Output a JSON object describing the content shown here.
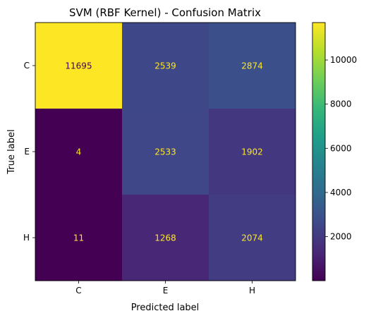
{
  "chart_data": {
    "type": "heatmap",
    "title": "SVM (RBF Kernel) - Confusion Matrix",
    "xlabel": "Predicted label",
    "ylabel": "True label",
    "x_categories": [
      "C",
      "E",
      "H"
    ],
    "y_categories": [
      "C",
      "E",
      "H"
    ],
    "values": [
      [
        11695,
        2539,
        2874
      ],
      [
        4,
        2533,
        1902
      ],
      [
        11,
        1268,
        2074
      ]
    ],
    "colormap": "viridis",
    "colorbar": {
      "ticks": [
        2000,
        4000,
        6000,
        8000,
        10000
      ],
      "range": [
        4,
        11695
      ]
    },
    "grid": false,
    "label_colors": {
      "on_dark": "#fde725",
      "on_light": "#440154"
    }
  }
}
